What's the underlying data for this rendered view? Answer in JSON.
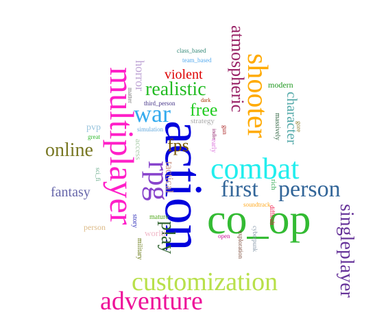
{
  "words": [
    {
      "text": "action",
      "color": "#0000dd"
    },
    {
      "text": "co_op",
      "color": "#33bb33"
    },
    {
      "text": "multiplayer",
      "color": "#ff1fc8"
    },
    {
      "text": "shooter",
      "color": "#ffaa00"
    },
    {
      "text": "combat",
      "color": "#22eeee"
    },
    {
      "text": "person",
      "color": "#336699"
    },
    {
      "text": "first",
      "color": "#336699"
    },
    {
      "text": "customization",
      "color": "#b8e04a"
    },
    {
      "text": "adventure",
      "color": "#ee1199"
    },
    {
      "text": "singleplayer",
      "color": "#663399"
    },
    {
      "text": "atmospheric",
      "color": "#992266"
    },
    {
      "text": "rpg",
      "color": "#8844cc"
    },
    {
      "text": "war",
      "color": "#33aaee"
    },
    {
      "text": "online",
      "color": "#777722"
    },
    {
      "text": "realistic",
      "color": "#22bb22"
    },
    {
      "text": "play",
      "color": "#336633"
    },
    {
      "text": "character",
      "color": "#55aaaa"
    },
    {
      "text": "fps",
      "color": "#775500"
    },
    {
      "text": "free",
      "color": "#22cc22"
    },
    {
      "text": "violent",
      "color": "#dd0000"
    },
    {
      "text": "fantasy",
      "color": "#6666aa"
    },
    {
      "text": "tactical",
      "color": "#cc9988"
    },
    {
      "text": "horror",
      "color": "#c0a6d6"
    },
    {
      "text": "modern",
      "color": "#229922"
    },
    {
      "text": "strategy",
      "color": "#aaaaaa"
    },
    {
      "text": "class_based",
      "color": "#338877"
    },
    {
      "text": "team_based",
      "color": "#55aaee"
    },
    {
      "text": "third_person",
      "color": "#443388"
    },
    {
      "text": "dark",
      "color": "#aa3300"
    },
    {
      "text": "matter",
      "color": "#777777"
    },
    {
      "text": "simulation",
      "color": "#66aadd"
    },
    {
      "text": "pvp",
      "color": "#99c4dd"
    },
    {
      "text": "great",
      "color": "#33bb33"
    },
    {
      "text": "access",
      "color": "#aaccaa"
    },
    {
      "text": "indie",
      "color": "#993377"
    },
    {
      "text": "early",
      "color": "#dd77dd"
    },
    {
      "text": "gun",
      "color": "#aa2222"
    },
    {
      "text": "massively",
      "color": "#336644"
    },
    {
      "text": "gore",
      "color": "#887722"
    },
    {
      "text": "rich",
      "color": "#33aa55"
    },
    {
      "text": "soundtrack",
      "color": "#ffaa22"
    },
    {
      "text": "difficult",
      "color": "#ee1144"
    },
    {
      "text": "story",
      "color": "#3333bb"
    },
    {
      "text": "mature",
      "color": "#55aa22"
    },
    {
      "text": "world",
      "color": "#f0b8c8"
    },
    {
      "text": "military",
      "color": "#667711"
    },
    {
      "text": "open",
      "color": "#cc1199"
    },
    {
      "text": "cyberpunk",
      "color": "#8899aa"
    },
    {
      "text": "exploration",
      "color": "#774433"
    },
    {
      "text": "sci_fi",
      "color": "#66aa88"
    },
    {
      "text": "person",
      "color": "#ddbb88"
    }
  ]
}
